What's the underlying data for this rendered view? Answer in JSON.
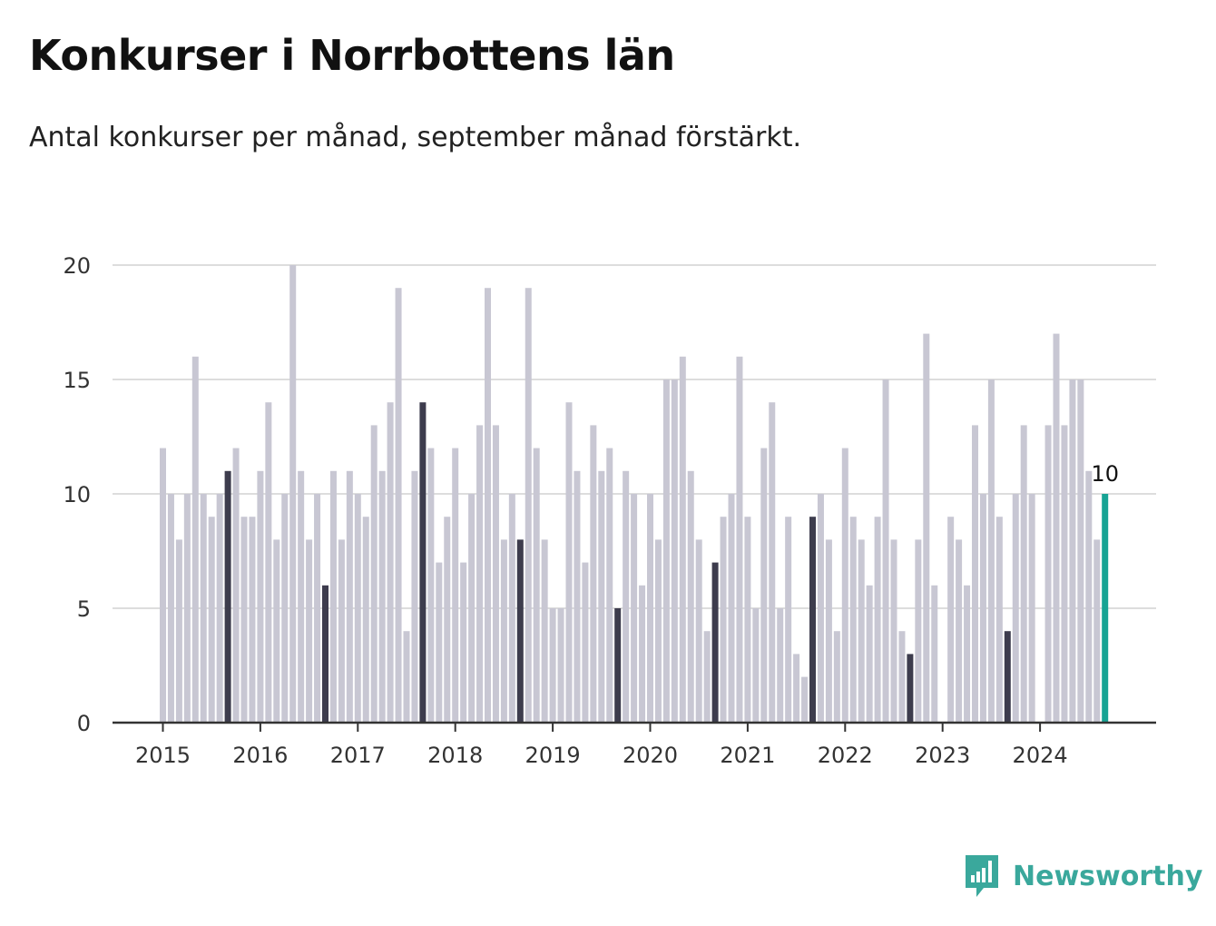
{
  "title": "Konkurser i Norrbottens län",
  "subtitle": "Antal konkurser per månad, september månad förstärkt.",
  "brand": {
    "name": "Newsworthy",
    "icon": "newsworthy-logo-icon",
    "color": "#3aa89c"
  },
  "colors": {
    "bar": "#c8c7d3",
    "highlight": "#3d3c4d",
    "current": "#17a394",
    "grid": "#dddddd",
    "axis": "#333333"
  },
  "chart_data": {
    "type": "bar",
    "title": "Konkurser i Norrbottens län",
    "xlabel": "",
    "ylabel": "",
    "ylim": [
      0,
      20
    ],
    "yticks": [
      "0",
      "5",
      "10",
      "15",
      "20"
    ],
    "xticks": [
      "2015",
      "2016",
      "2017",
      "2018",
      "2019",
      "2020",
      "2021",
      "2022",
      "2023",
      "2024"
    ],
    "grid": true,
    "start": "2015-01",
    "end": "2024-09",
    "highlight_month": "september",
    "last_value_label": "10",
    "values": [
      12,
      10,
      8,
      10,
      16,
      10,
      9,
      10,
      11,
      12,
      9,
      9,
      11,
      14,
      8,
      10,
      20,
      11,
      8,
      10,
      6,
      11,
      8,
      11,
      10,
      9,
      13,
      11,
      14,
      19,
      4,
      11,
      14,
      12,
      7,
      9,
      12,
      7,
      10,
      13,
      19,
      13,
      8,
      10,
      8,
      19,
      12,
      8,
      5,
      5,
      14,
      11,
      7,
      13,
      11,
      12,
      5,
      11,
      10,
      6,
      10,
      8,
      15,
      15,
      16,
      11,
      8,
      4,
      7,
      9,
      10,
      16,
      9,
      5,
      12,
      14,
      5,
      9,
      3,
      2,
      9,
      10,
      8,
      4,
      12,
      9,
      8,
      6,
      9,
      15,
      8,
      4,
      3,
      8,
      17,
      6,
      0,
      9,
      8,
      6,
      13,
      10,
      15,
      9,
      4,
      10,
      13,
      10,
      0,
      13,
      17,
      13,
      15,
      15,
      11,
      8,
      10
    ]
  }
}
